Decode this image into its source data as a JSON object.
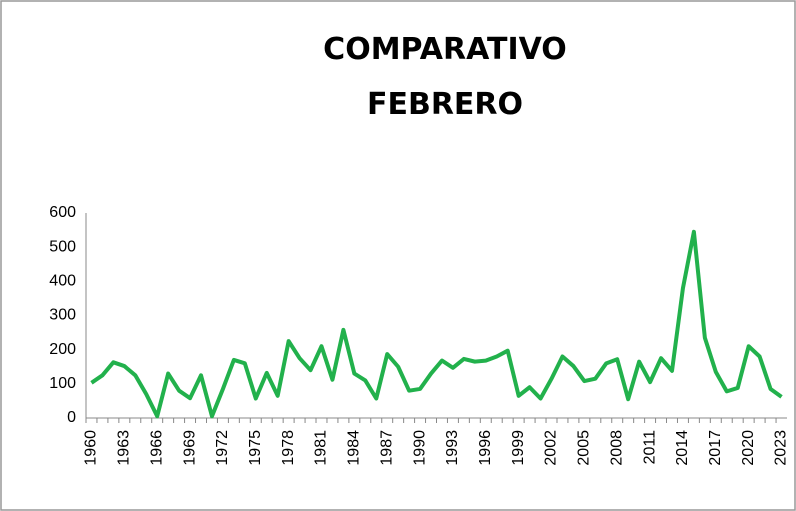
{
  "chart_data": {
    "type": "line",
    "title": "COMPARATIVO FEBRERO",
    "categories": [
      "1960",
      null,
      null,
      "1963",
      null,
      null,
      "1966",
      null,
      null,
      "1969",
      null,
      null,
      "1972",
      null,
      null,
      "1975",
      null,
      null,
      "1978",
      null,
      null,
      "1981",
      null,
      null,
      "1984",
      null,
      null,
      "1987",
      null,
      null,
      "1990",
      null,
      null,
      "1993",
      null,
      null,
      "1996",
      null,
      null,
      "1999",
      null,
      null,
      "2002",
      null,
      null,
      "2005",
      null,
      null,
      "2008",
      null,
      null,
      "2011",
      null,
      null,
      "2014",
      null,
      null,
      "2017",
      null,
      null,
      "2020",
      null,
      null,
      "2023"
    ],
    "values": [
      103,
      125,
      163,
      152,
      125,
      70,
      5,
      130,
      80,
      58,
      125,
      5,
      85,
      170,
      160,
      57,
      132,
      65,
      225,
      175,
      140,
      210,
      112,
      258,
      130,
      110,
      57,
      187,
      150,
      80,
      85,
      130,
      168,
      147,
      173,
      165,
      168,
      180,
      197,
      65,
      90,
      57,
      115,
      180,
      152,
      108,
      115,
      160,
      172,
      55,
      165,
      105,
      175,
      138,
      380,
      545,
      235,
      135,
      78,
      88,
      210,
      180,
      85,
      62
    ],
    "color": "#22b14c",
    "ylim": [
      0,
      600
    ],
    "yticks": [
      0,
      100,
      200,
      300,
      400,
      500,
      600
    ],
    "grid": false
  }
}
